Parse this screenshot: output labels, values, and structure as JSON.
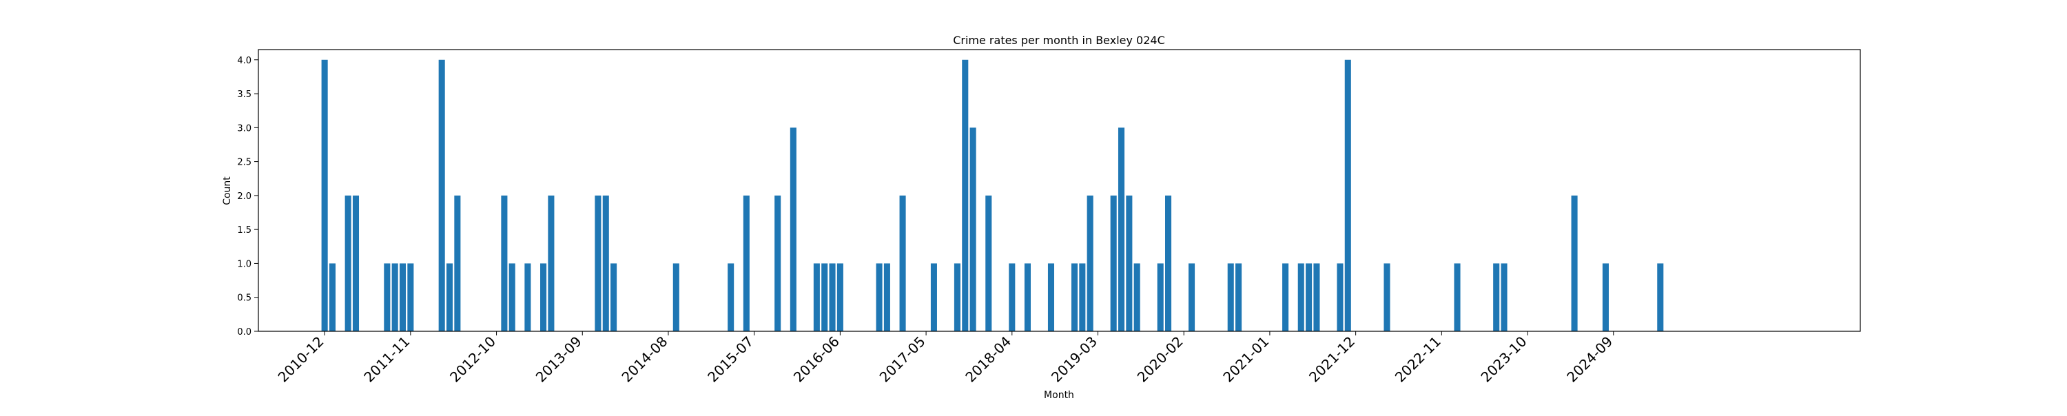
{
  "chart_data": {
    "type": "bar",
    "title": "Crime rates per month in Bexley 024C",
    "xlabel": "Month",
    "ylabel": "Count",
    "ylim": [
      0,
      4.15
    ],
    "xlim": [
      2010.21,
      2027.3
    ],
    "bar_color": "#1f77b4",
    "x_ticks": [
      "2010-12",
      "2011-11",
      "2012-10",
      "2013-09",
      "2014-08",
      "2015-07",
      "2016-06",
      "2017-05",
      "2018-04",
      "2019-03",
      "2020-02",
      "2021-01",
      "2021-12",
      "2022-11",
      "2023-10",
      "2024-09"
    ],
    "y_ticks": [
      0.0,
      0.5,
      1.0,
      1.5,
      2.0,
      2.5,
      3.0,
      3.5,
      4.0
    ],
    "x": [
      "2010-12",
      "2011-01",
      "2011-03",
      "2011-04",
      "2011-08",
      "2011-09",
      "2011-10",
      "2011-11",
      "2012-03",
      "2012-04",
      "2012-05",
      "2012-11",
      "2012-12",
      "2013-02",
      "2013-04",
      "2013-05",
      "2013-11",
      "2013-12",
      "2014-01",
      "2014-09",
      "2015-04",
      "2015-06",
      "2015-10",
      "2015-12",
      "2016-03",
      "2016-04",
      "2016-05",
      "2016-06",
      "2016-11",
      "2016-12",
      "2017-02",
      "2017-06",
      "2017-09",
      "2017-10",
      "2017-11",
      "2018-01",
      "2018-04",
      "2018-06",
      "2018-09",
      "2018-12",
      "2019-01",
      "2019-02",
      "2019-05",
      "2019-06",
      "2019-07",
      "2019-08",
      "2019-11",
      "2019-12",
      "2020-03",
      "2020-08",
      "2020-09",
      "2021-03",
      "2021-05",
      "2021-06",
      "2021-07",
      "2021-10",
      "2021-11",
      "2022-04",
      "2023-01",
      "2023-06",
      "2023-07",
      "2024-04",
      "2024-08",
      "2025-03"
    ],
    "values": [
      4,
      1,
      2,
      2,
      1,
      1,
      1,
      1,
      4,
      1,
      2,
      2,
      1,
      1,
      1,
      2,
      2,
      2,
      1,
      1,
      1,
      2,
      2,
      3,
      1,
      1,
      1,
      1,
      1,
      1,
      2,
      1,
      1,
      4,
      3,
      2,
      1,
      1,
      1,
      1,
      1,
      2,
      2,
      3,
      2,
      1,
      1,
      2,
      1,
      1,
      1,
      1,
      1,
      1,
      1,
      1,
      4,
      1,
      1,
      1,
      1,
      2,
      1,
      1
    ]
  }
}
